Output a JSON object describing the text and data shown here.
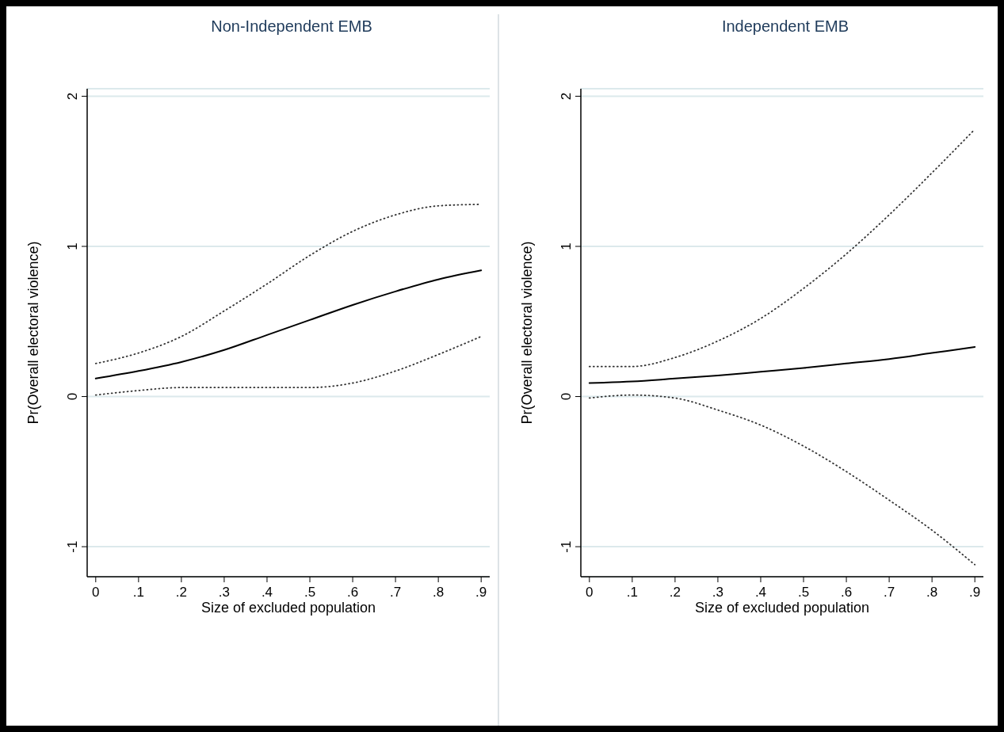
{
  "chart_data": [
    {
      "type": "line",
      "title": "Non-Independent EMB",
      "xlabel": "Size of excluded population",
      "ylabel": "Pr(Overall electoral violence)",
      "x": [
        0,
        0.1,
        0.2,
        0.3,
        0.4,
        0.5,
        0.6,
        0.7,
        0.8,
        0.9
      ],
      "xlim": [
        -0.02,
        0.92
      ],
      "xticks": [
        0,
        {
          "value": 0.1,
          "label": ".1"
        },
        {
          "value": 0.2,
          "label": ".2"
        },
        {
          "value": 0.3,
          "label": ".3"
        },
        {
          "value": 0.4,
          "label": ".4"
        },
        {
          "value": 0.5,
          "label": ".5"
        },
        {
          "value": 0.6,
          "label": ".6"
        },
        {
          "value": 0.7,
          "label": ".7"
        },
        {
          "value": 0.8,
          "label": ".8"
        },
        {
          "value": 0.9,
          "label": ".9"
        }
      ],
      "ylim": [
        -1.2,
        2.05
      ],
      "yticks": [
        -1,
        0,
        1,
        2
      ],
      "grid": "y",
      "marker": "none",
      "series": [
        {
          "color": "#000000",
          "line_style": "solid",
          "values": [
            0.12,
            0.17,
            0.23,
            0.31,
            0.41,
            0.51,
            0.61,
            0.7,
            0.78,
            0.84
          ]
        },
        {
          "color": "#333333",
          "line_style": "dotted",
          "values": [
            0.22,
            0.29,
            0.4,
            0.57,
            0.75,
            0.94,
            1.1,
            1.21,
            1.27,
            1.28
          ]
        },
        {
          "color": "#333333",
          "line_style": "dotted",
          "values": [
            0.01,
            0.04,
            0.06,
            0.06,
            0.06,
            0.06,
            0.09,
            0.17,
            0.28,
            0.4
          ]
        }
      ]
    },
    {
      "type": "line",
      "title": "Independent EMB",
      "xlabel": "Size of excluded population",
      "ylabel": "Pr(Overall electoral violence)",
      "x": [
        0,
        0.1,
        0.2,
        0.3,
        0.4,
        0.5,
        0.6,
        0.7,
        0.8,
        0.9
      ],
      "xlim": [
        -0.02,
        0.92
      ],
      "xticks": [
        0,
        {
          "value": 0.1,
          "label": ".1"
        },
        {
          "value": 0.2,
          "label": ".2"
        },
        {
          "value": 0.3,
          "label": ".3"
        },
        {
          "value": 0.4,
          "label": ".4"
        },
        {
          "value": 0.5,
          "label": ".5"
        },
        {
          "value": 0.6,
          "label": ".6"
        },
        {
          "value": 0.7,
          "label": ".7"
        },
        {
          "value": 0.8,
          "label": ".8"
        },
        {
          "value": 0.9,
          "label": ".9"
        }
      ],
      "ylim": [
        -1.2,
        2.05
      ],
      "yticks": [
        -1,
        0,
        1,
        2
      ],
      "grid": "y",
      "marker": "none",
      "series": [
        {
          "color": "#000000",
          "line_style": "solid",
          "values": [
            0.09,
            0.1,
            0.12,
            0.14,
            0.165,
            0.19,
            0.22,
            0.25,
            0.29,
            0.33
          ]
        },
        {
          "color": "#333333",
          "line_style": "dotted",
          "values": [
            0.2,
            0.2,
            0.26,
            0.37,
            0.52,
            0.72,
            0.95,
            1.21,
            1.49,
            1.78
          ]
        },
        {
          "color": "#333333",
          "line_style": "dotted",
          "values": [
            -0.01,
            0.01,
            -0.01,
            -0.09,
            -0.19,
            -0.33,
            -0.5,
            -0.69,
            -0.89,
            -1.12
          ]
        }
      ]
    }
  ]
}
